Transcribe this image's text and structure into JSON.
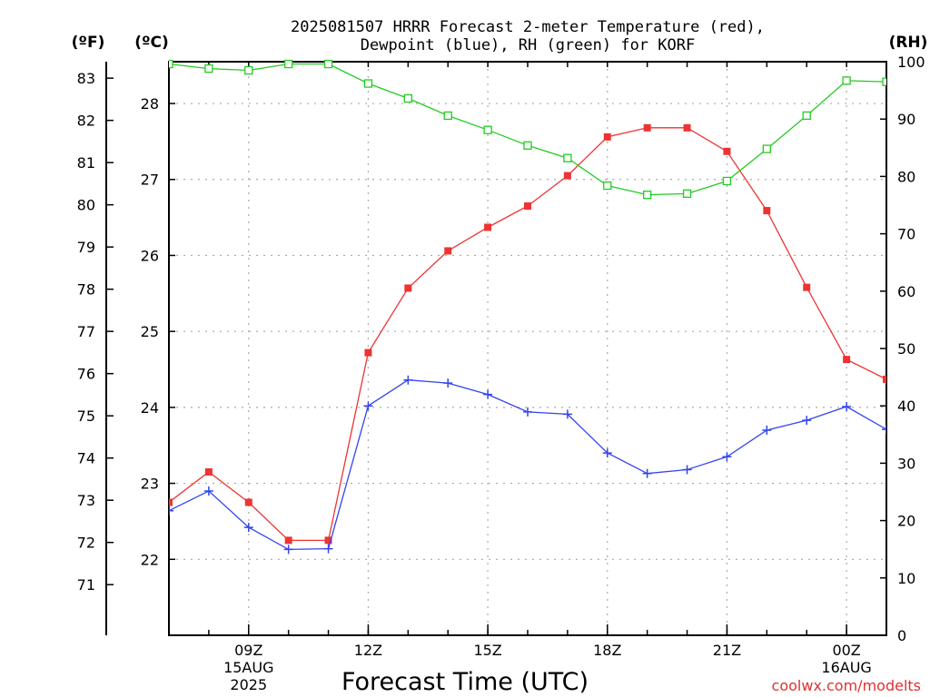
{
  "chart_data": {
    "type": "line",
    "title_lines": [
      "2025081507 HRRR Forecast 2-meter Temperature (red),",
      "Dewpoint (blue), RH (green) for KORF"
    ],
    "units": {
      "fahrenheit": "(ºF)",
      "celsius": "(ºC)",
      "rh": "(RH)"
    },
    "xlabel": "Forecast Time (UTC)",
    "x_hours": [
      7,
      8,
      9,
      10,
      11,
      12,
      13,
      14,
      15,
      16,
      17,
      18,
      19,
      20,
      21,
      22,
      23,
      24,
      25
    ],
    "x_ticks": [
      {
        "hour": 9,
        "lines": [
          "09Z",
          "15AUG",
          "2025"
        ]
      },
      {
        "hour": 12,
        "lines": [
          "12Z"
        ]
      },
      {
        "hour": 15,
        "lines": [
          "15Z"
        ]
      },
      {
        "hour": 18,
        "lines": [
          "18Z"
        ]
      },
      {
        "hour": 21,
        "lines": [
          "21Z"
        ]
      },
      {
        "hour": 24,
        "lines": [
          "00Z",
          "16AUG"
        ]
      }
    ],
    "xlim_hours": [
      7,
      25
    ],
    "celsius_ylim": [
      21.0,
      28.55
    ],
    "celsius_ticks": [
      "22",
      "23",
      "24",
      "25",
      "26",
      "27",
      "28"
    ],
    "fahrenheit_ticks": [
      "71",
      "72",
      "73",
      "74",
      "75",
      "76",
      "77",
      "78",
      "79",
      "80",
      "81",
      "82",
      "83"
    ],
    "rh_ylim": [
      0,
      100
    ],
    "rh_ticks": [
      "0",
      "10",
      "20",
      "30",
      "40",
      "50",
      "60",
      "70",
      "80",
      "90",
      "100"
    ],
    "grid": true,
    "series": [
      {
        "axis": "celsius",
        "color": "#ee3333",
        "marker": "filled-square",
        "values": [
          22.75,
          23.15,
          22.75,
          22.25,
          22.25,
          24.72,
          25.57,
          26.06,
          26.37,
          26.65,
          27.05,
          27.56,
          27.68,
          27.68,
          27.37,
          26.59,
          25.58,
          24.63,
          24.37
        ]
      },
      {
        "axis": "celsius",
        "color": "#3344ee",
        "marker": "plus",
        "values": [
          22.64,
          22.9,
          22.42,
          22.13,
          22.14,
          24.02,
          24.36,
          24.32,
          24.17,
          23.94,
          23.91,
          23.4,
          23.13,
          23.18,
          23.35,
          23.7,
          23.83,
          24.01,
          23.71
        ]
      },
      {
        "axis": "rh",
        "color": "#22cc22",
        "marker": "open-square",
        "values": [
          99.6,
          98.8,
          98.5,
          99.6,
          99.6,
          96.2,
          93.6,
          90.6,
          88.1,
          85.4,
          83.2,
          78.4,
          76.8,
          77.0,
          79.2,
          84.8,
          90.6,
          96.7,
          96.5
        ]
      }
    ],
    "credit": "coolwx.com/modelts"
  }
}
